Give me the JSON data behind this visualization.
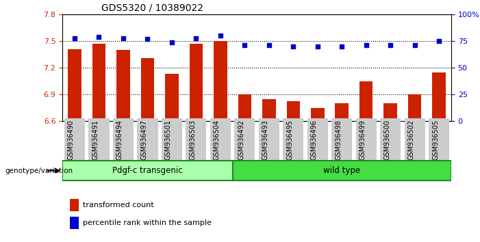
{
  "title": "GDS5320 / 10389022",
  "categories": [
    "GSM936490",
    "GSM936491",
    "GSM936494",
    "GSM936497",
    "GSM936501",
    "GSM936503",
    "GSM936504",
    "GSM936492",
    "GSM936493",
    "GSM936495",
    "GSM936496",
    "GSM936498",
    "GSM936499",
    "GSM936500",
    "GSM936502",
    "GSM936505"
  ],
  "bar_values": [
    7.41,
    7.47,
    7.4,
    7.31,
    7.13,
    7.47,
    7.5,
    6.9,
    6.85,
    6.82,
    6.75,
    6.8,
    7.05,
    6.8,
    6.9,
    7.15
  ],
  "percentile_values": [
    78,
    79,
    78,
    77,
    74,
    78,
    80,
    71,
    71,
    70,
    70,
    70,
    71,
    71,
    71,
    75
  ],
  "bar_color": "#cc2200",
  "percentile_color": "#0000cc",
  "ylim_left": [
    6.6,
    7.8
  ],
  "ylim_right": [
    0,
    100
  ],
  "yticks_left": [
    6.6,
    6.9,
    7.2,
    7.5,
    7.8
  ],
  "yticks_right": [
    0,
    25,
    50,
    75,
    100
  ],
  "ytick_labels_right": [
    "0",
    "25",
    "50",
    "75",
    "100%"
  ],
  "grid_values": [
    6.9,
    7.2,
    7.5
  ],
  "group1_label": "Pdgf-c transgenic",
  "group2_label": "wild type",
  "group1_count": 7,
  "group2_count": 9,
  "group1_color": "#aaffaa",
  "group2_color": "#44dd44",
  "genotype_label": "genotype/variation",
  "legend1_label": "transformed count",
  "legend2_label": "percentile rank within the sample",
  "bar_width": 0.55,
  "xlabel_rotation": 90,
  "xlabel_fontsize": 7,
  "title_fontsize": 10,
  "tick_label_color_left": "#cc2200",
  "tick_label_color_right": "#0000cc",
  "xtick_bg_color": "#cccccc"
}
